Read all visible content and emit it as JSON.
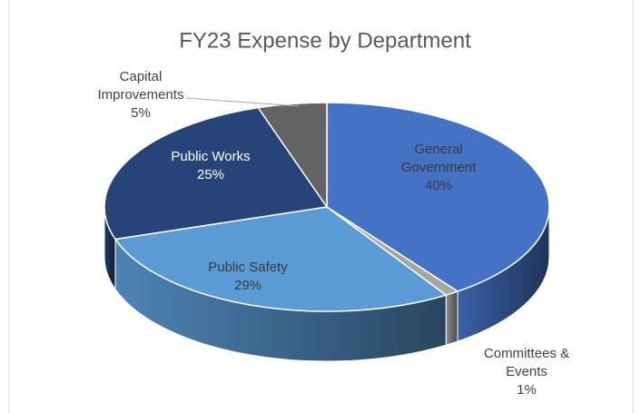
{
  "chart_data": {
    "type": "pie",
    "title": "FY23 Expense by Department",
    "categories": [
      "General Government",
      "Committees & Events",
      "Public Safety",
      "Public Works",
      "Capital Improvements"
    ],
    "values": [
      40,
      1,
      29,
      25,
      5
    ],
    "value_labels": [
      "40%",
      "1%",
      "29%",
      "25%",
      "5%"
    ],
    "colors": [
      "#4472c4",
      "#a5a5a5",
      "#5b9bd5",
      "#264478",
      "#636363"
    ]
  }
}
